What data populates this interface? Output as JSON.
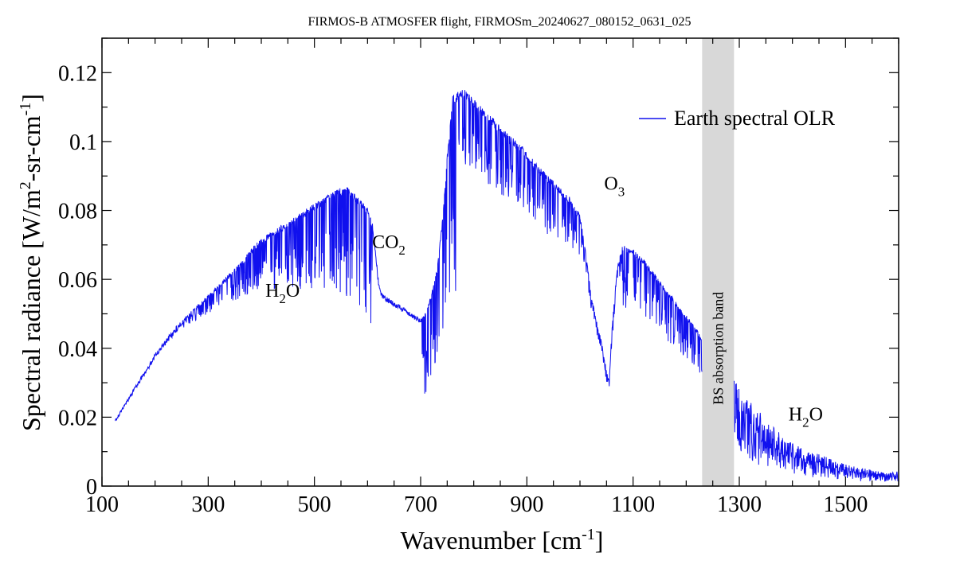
{
  "chart_data": {
    "type": "line",
    "title": "FIRMOS-B ATMOSFER flight, FIRMOSm_20240627_080152_0631_025",
    "xlabel": {
      "text": "Wavenumber [cm",
      "sup": "-1",
      "tail": "]"
    },
    "ylabel": {
      "p1": "Spectral radiance [W/m",
      "sup1": "2",
      "p2": "-sr-cm",
      "sup2": "-1",
      "tail": "]"
    },
    "xlim": [
      100,
      1600
    ],
    "ylim": [
      0,
      0.13
    ],
    "x_ticks": [
      100,
      300,
      500,
      700,
      900,
      1100,
      1300,
      1500
    ],
    "x_tick_labels": [
      "100",
      "300",
      "500",
      "700",
      "900",
      "1100",
      "1300",
      "1500"
    ],
    "y_ticks": [
      0,
      0.02,
      0.04,
      0.06,
      0.08,
      0.1,
      0.12
    ],
    "y_tick_labels": [
      "0",
      "0.02",
      "0.04",
      "0.06",
      "0.08",
      "0.1",
      "0.12"
    ],
    "x_minor_step": 50,
    "y_minor_step": 0.01,
    "grid": false,
    "legend_position": "top-right",
    "series": [
      {
        "name": "Earth spectral OLR",
        "color": "#1010ee",
        "x": [
          125,
          140,
          160,
          180,
          200,
          220,
          240,
          260,
          280,
          300,
          320,
          340,
          360,
          380,
          400,
          420,
          440,
          460,
          480,
          500,
          520,
          540,
          560,
          580,
          600,
          610,
          620,
          625,
          630,
          640,
          660,
          680,
          700,
          710,
          720,
          730,
          740,
          750,
          760,
          780,
          800,
          820,
          840,
          860,
          880,
          900,
          920,
          940,
          960,
          980,
          1000,
          1010,
          1020,
          1030,
          1040,
          1050,
          1055,
          1060,
          1070,
          1080,
          1100,
          1120,
          1140,
          1160,
          1180,
          1200,
          1220,
          1230,
          1290,
          1300,
          1320,
          1340,
          1360,
          1380,
          1400,
          1420,
          1440,
          1460,
          1480,
          1500,
          1520,
          1540,
          1560,
          1580,
          1600
        ],
        "y": [
          0.019,
          0.023,
          0.028,
          0.033,
          0.038,
          0.042,
          0.046,
          0.049,
          0.052,
          0.055,
          0.058,
          0.061,
          0.064,
          0.068,
          0.071,
          0.073,
          0.075,
          0.077,
          0.079,
          0.081,
          0.083,
          0.085,
          0.086,
          0.083,
          0.08,
          0.075,
          0.06,
          0.056,
          0.055,
          0.054,
          0.052,
          0.05,
          0.048,
          0.05,
          0.055,
          0.062,
          0.075,
          0.095,
          0.112,
          0.114,
          0.111,
          0.108,
          0.105,
          0.102,
          0.099,
          0.096,
          0.092,
          0.089,
          0.086,
          0.083,
          0.078,
          0.068,
          0.056,
          0.048,
          0.042,
          0.033,
          0.03,
          0.045,
          0.063,
          0.069,
          0.068,
          0.065,
          0.061,
          0.057,
          0.053,
          0.049,
          0.045,
          0.042,
          0.027,
          0.022,
          0.02,
          0.017,
          0.014,
          0.012,
          0.01,
          0.009,
          0.008,
          0.007,
          0.006,
          0.005,
          0.0045,
          0.004,
          0.0035,
          0.003,
          0.0035
        ]
      }
    ],
    "annotations": [
      {
        "text": "H",
        "sub": "2",
        "tail": "O",
        "x": 440,
        "y": 0.055
      },
      {
        "text": "CO",
        "sub": "2",
        "tail": "",
        "x": 640,
        "y": 0.069
      },
      {
        "text": "O",
        "sub": "3",
        "tail": "",
        "x": 1065,
        "y": 0.086
      },
      {
        "text": "H",
        "sub": "2",
        "tail": "O",
        "x": 1425,
        "y": 0.019
      }
    ],
    "shaded_band": {
      "label": "BS absorption band",
      "x_start": 1230,
      "x_end": 1290,
      "color": "#d8d8d8"
    }
  }
}
